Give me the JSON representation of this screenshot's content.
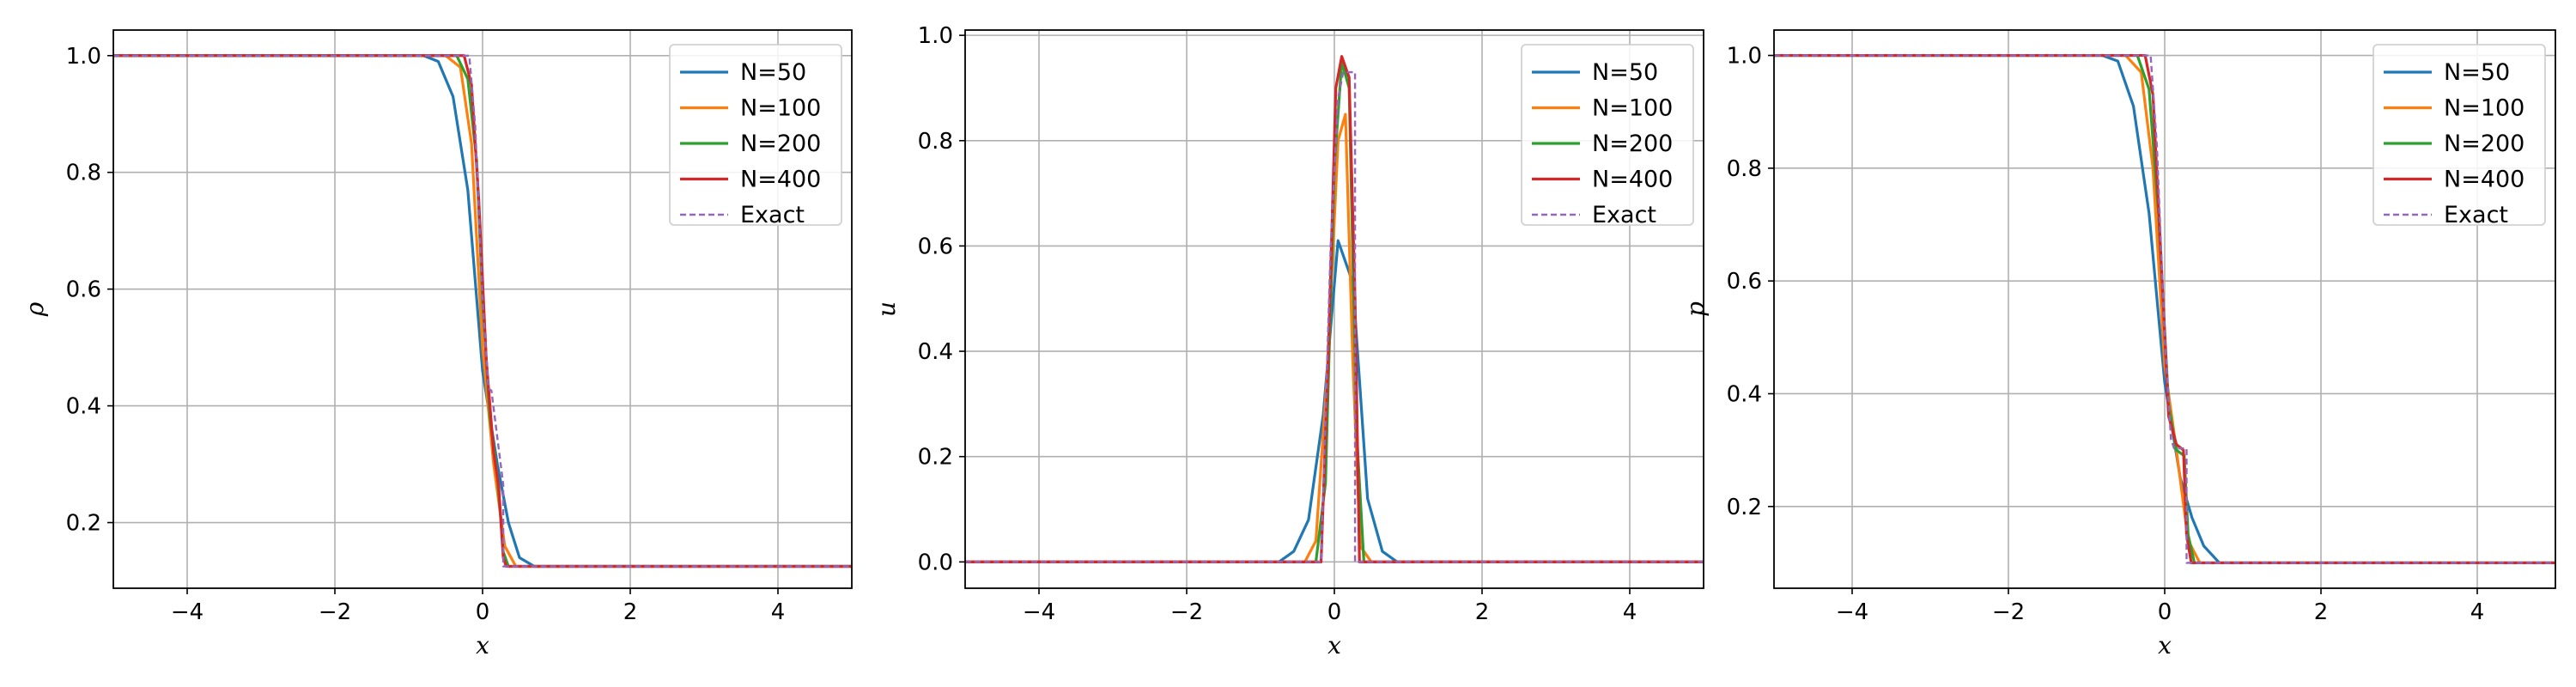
{
  "colors": {
    "N=50": "#1f77b4",
    "N=100": "#ff7f0e",
    "N=200": "#2ca02c",
    "N=400": "#d62728",
    "Exact": "#9467bd",
    "grid": "#b0b0b0"
  },
  "chart_data": [
    {
      "type": "line",
      "xlabel": "x",
      "ylabel": "ρ",
      "xlim": [
        -5,
        5
      ],
      "ylim": [
        0.0875,
        1.0438
      ],
      "xticks": [
        -4,
        -2,
        0,
        2,
        4
      ],
      "xtick_labels": [
        "−4",
        "−2",
        "0",
        "2",
        "4"
      ],
      "yticks": [
        0.2,
        0.4,
        0.6,
        0.8,
        1.0
      ],
      "ytick_labels": [
        "0.2",
        "0.4",
        "0.6",
        "0.8",
        "1.0"
      ],
      "grid": true,
      "legend_position": "top-right",
      "series": [
        {
          "name": "N=50",
          "style": "solid",
          "x": [
            -5,
            -0.8,
            -0.6,
            -0.4,
            -0.2,
            0.0,
            0.2,
            0.35,
            0.5,
            0.7,
            5
          ],
          "y": [
            1.0,
            1.0,
            0.99,
            0.93,
            0.77,
            0.46,
            0.3,
            0.2,
            0.14,
            0.125,
            0.125
          ]
        },
        {
          "name": "N=100",
          "style": "solid",
          "x": [
            -5,
            -0.5,
            -0.3,
            -0.15,
            0.0,
            0.15,
            0.3,
            0.45,
            5
          ],
          "y": [
            1.0,
            1.0,
            0.98,
            0.85,
            0.5,
            0.3,
            0.16,
            0.125,
            0.125
          ]
        },
        {
          "name": "N=200",
          "style": "solid",
          "x": [
            -5,
            -0.35,
            -0.2,
            -0.08,
            0.0,
            0.1,
            0.2,
            0.28,
            0.35,
            5
          ],
          "y": [
            1.0,
            1.0,
            0.96,
            0.82,
            0.58,
            0.38,
            0.28,
            0.15,
            0.125,
            0.125
          ]
        },
        {
          "name": "N=400",
          "style": "solid",
          "x": [
            -5,
            -0.25,
            -0.15,
            -0.05,
            0.05,
            0.15,
            0.22,
            0.28,
            0.32,
            5
          ],
          "y": [
            1.0,
            1.0,
            0.95,
            0.75,
            0.48,
            0.32,
            0.26,
            0.14,
            0.125,
            0.125
          ]
        },
        {
          "name": "Exact",
          "style": "dashed",
          "x": [
            -5,
            -0.18,
            -0.1,
            0.0,
            0.08,
            0.12,
            0.28,
            0.28,
            5
          ],
          "y": [
            1.0,
            1.0,
            0.88,
            0.58,
            0.43,
            0.426,
            0.265,
            0.125,
            0.125
          ]
        }
      ]
    },
    {
      "type": "line",
      "xlabel": "x",
      "ylabel": "u",
      "xlim": [
        -5,
        5
      ],
      "ylim": [
        -0.05,
        1.01
      ],
      "xticks": [
        -4,
        -2,
        0,
        2,
        4
      ],
      "xtick_labels": [
        "−4",
        "−2",
        "0",
        "2",
        "4"
      ],
      "yticks": [
        0.0,
        0.2,
        0.4,
        0.6,
        0.8,
        1.0
      ],
      "ytick_labels": [
        "0.0",
        "0.2",
        "0.4",
        "0.6",
        "0.8",
        "1.0"
      ],
      "grid": true,
      "legend_position": "top-right",
      "series": [
        {
          "name": "N=50",
          "style": "solid",
          "x": [
            -5,
            -0.75,
            -0.55,
            -0.35,
            -0.15,
            0.05,
            0.25,
            0.45,
            0.65,
            0.85,
            5
          ],
          "y": [
            0.0,
            0.0,
            0.02,
            0.08,
            0.28,
            0.61,
            0.53,
            0.12,
            0.02,
            0.0,
            0.0
          ]
        },
        {
          "name": "N=100",
          "style": "solid",
          "x": [
            -5,
            -0.4,
            -0.25,
            -0.1,
            0.05,
            0.15,
            0.25,
            0.35,
            0.5,
            5
          ],
          "y": [
            0.0,
            0.0,
            0.04,
            0.35,
            0.8,
            0.85,
            0.38,
            0.03,
            0.0,
            0.0
          ]
        },
        {
          "name": "N=200",
          "style": "solid",
          "x": [
            -5,
            -0.25,
            -0.12,
            0.0,
            0.1,
            0.2,
            0.3,
            0.4,
            5
          ],
          "y": [
            0.0,
            0.0,
            0.15,
            0.75,
            0.95,
            0.9,
            0.25,
            0.0,
            0.0
          ]
        },
        {
          "name": "N=400",
          "style": "solid",
          "x": [
            -5,
            -0.18,
            -0.08,
            0.02,
            0.1,
            0.2,
            0.28,
            0.34,
            5
          ],
          "y": [
            0.0,
            0.0,
            0.4,
            0.9,
            0.96,
            0.92,
            0.5,
            0.0,
            0.0
          ]
        },
        {
          "name": "Exact",
          "style": "dashed",
          "x": [
            -5,
            -0.18,
            -0.05,
            0.05,
            0.12,
            0.28,
            0.28,
            5
          ],
          "y": [
            0.0,
            0.0,
            0.6,
            0.88,
            0.93,
            0.93,
            0.0,
            0.0
          ]
        }
      ]
    },
    {
      "type": "line",
      "xlabel": "x",
      "ylabel": "p",
      "xlim": [
        -5,
        5
      ],
      "ylim": [
        0.055,
        1.045
      ],
      "xticks": [
        -4,
        -2,
        0,
        2,
        4
      ],
      "xtick_labels": [
        "−4",
        "−2",
        "0",
        "2",
        "4"
      ],
      "yticks": [
        0.2,
        0.4,
        0.6,
        0.8,
        1.0
      ],
      "ytick_labels": [
        "0.2",
        "0.4",
        "0.6",
        "0.8",
        "1.0"
      ],
      "grid": true,
      "legend_position": "top-right",
      "series": [
        {
          "name": "N=50",
          "style": "solid",
          "x": [
            -5,
            -0.8,
            -0.6,
            -0.4,
            -0.2,
            0.0,
            0.2,
            0.35,
            0.5,
            0.7,
            5
          ],
          "y": [
            1.0,
            1.0,
            0.99,
            0.91,
            0.72,
            0.42,
            0.25,
            0.18,
            0.13,
            0.1,
            0.1
          ]
        },
        {
          "name": "N=100",
          "style": "solid",
          "x": [
            -5,
            -0.5,
            -0.3,
            -0.15,
            0.0,
            0.15,
            0.3,
            0.45,
            5
          ],
          "y": [
            1.0,
            1.0,
            0.97,
            0.8,
            0.45,
            0.3,
            0.14,
            0.1,
            0.1
          ]
        },
        {
          "name": "N=200",
          "style": "solid",
          "x": [
            -5,
            -0.35,
            -0.2,
            -0.08,
            0.05,
            0.15,
            0.25,
            0.3,
            0.38,
            5
          ],
          "y": [
            1.0,
            1.0,
            0.94,
            0.72,
            0.38,
            0.3,
            0.29,
            0.15,
            0.1,
            0.1
          ]
        },
        {
          "name": "N=400",
          "style": "solid",
          "x": [
            -5,
            -0.25,
            -0.15,
            -0.05,
            0.05,
            0.15,
            0.24,
            0.28,
            0.34,
            5
          ],
          "y": [
            1.0,
            1.0,
            0.93,
            0.65,
            0.36,
            0.31,
            0.3,
            0.15,
            0.1,
            0.1
          ]
        },
        {
          "name": "Exact",
          "style": "dashed",
          "x": [
            -5,
            -0.18,
            -0.1,
            0.0,
            0.08,
            0.12,
            0.28,
            0.28,
            5
          ],
          "y": [
            1.0,
            1.0,
            0.84,
            0.5,
            0.32,
            0.303,
            0.303,
            0.1,
            0.1
          ]
        }
      ]
    }
  ]
}
